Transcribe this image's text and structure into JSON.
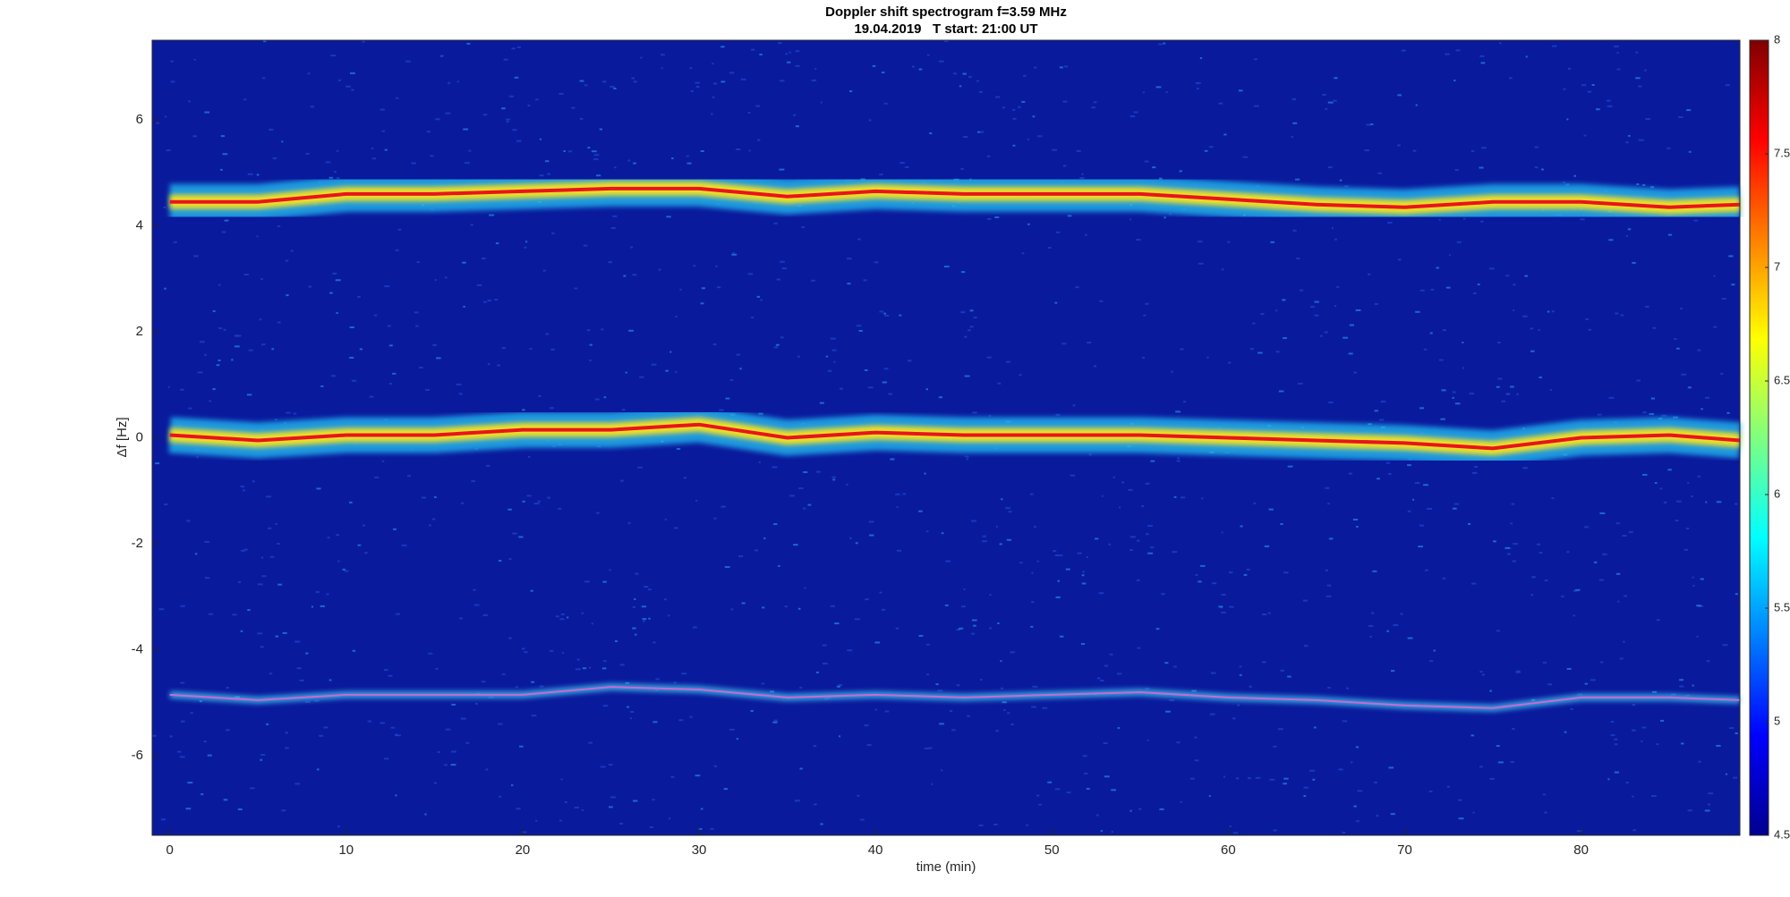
{
  "chart_data": {
    "type": "spectrogram",
    "title": "Doppler shift spectrogram f=3.59 MHz",
    "subtitle": "19.04.2019   T start: 21:00 UT",
    "x_label": "time (min)",
    "y_label": "Δf [Hz]",
    "x": [
      0,
      5,
      10,
      15,
      20,
      25,
      30,
      35,
      40,
      45,
      50,
      55,
      60,
      65,
      70,
      75,
      80,
      85,
      89
    ],
    "series": [
      {
        "values": [
          4.45,
          4.45,
          4.6,
          4.6,
          4.65,
          4.7,
          4.7,
          4.55,
          4.65,
          4.6,
          4.6,
          4.6,
          4.5,
          4.4,
          4.35,
          4.45,
          4.45,
          4.35,
          4.4
        ],
        "color": "#e8141e"
      },
      {
        "values": [
          0.05,
          -0.05,
          0.05,
          0.05,
          0.15,
          0.15,
          0.25,
          0,
          0.1,
          0.05,
          0.05,
          0.05,
          0,
          -0.05,
          -0.1,
          -0.2,
          0,
          0.05,
          -0.05
        ],
        "color": "#e8141e"
      },
      {
        "values": [
          -4.85,
          -4.95,
          -4.85,
          -4.85,
          -4.85,
          -4.7,
          -4.75,
          -4.9,
          -4.85,
          -4.9,
          -4.85,
          -4.8,
          -4.9,
          -4.95,
          -5.05,
          -5.1,
          -4.9,
          -4.9,
          -4.95
        ],
        "color": "#c86ad0"
      }
    ],
    "xlim": [
      -1,
      89
    ],
    "xticks": [
      0,
      10,
      20,
      30,
      40,
      50,
      60,
      70,
      80
    ],
    "ylim": [
      -7.5,
      7.5
    ],
    "yticks": [
      -6,
      -4,
      -2,
      0,
      2,
      4,
      6
    ],
    "clim": [
      4.5,
      8
    ],
    "cticks": [
      4.5,
      5,
      5.5,
      6,
      6.5,
      7,
      7.5,
      8
    ],
    "colormap": "jet"
  }
}
